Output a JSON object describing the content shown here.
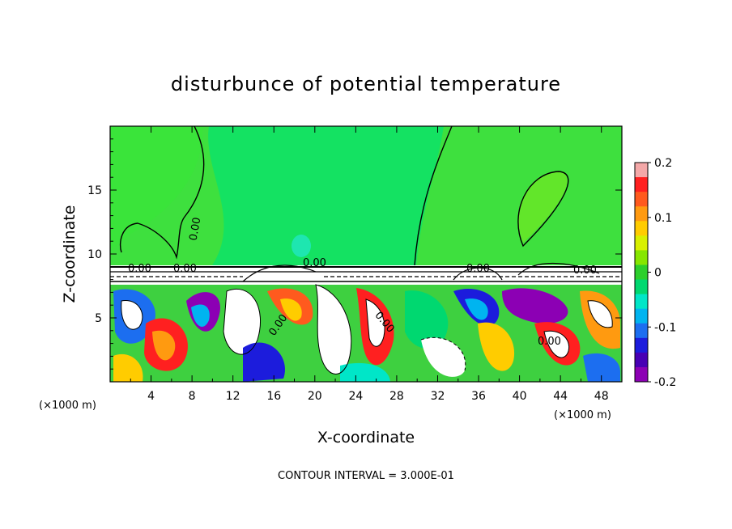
{
  "chart_data": {
    "type": "heatmap",
    "title": "disturbunce of potential temperature",
    "xlabel": "X-coordinate",
    "ylabel": "Z-coordinate",
    "x_unit": "(×1000 m)",
    "z_unit": "(×1000 m)",
    "xlim": [
      0,
      50
    ],
    "ylim": [
      0,
      20
    ],
    "x_ticks": [
      "4",
      "8",
      "12",
      "16",
      "20",
      "24",
      "28",
      "32",
      "36",
      "40",
      "44",
      "48"
    ],
    "y_ticks": [
      "5",
      "10",
      "15"
    ],
    "colorbar": {
      "range": [
        -0.2,
        0.2
      ],
      "ticks": [
        "0.2",
        "0.1",
        "0",
        "-0.1",
        "-0.2"
      ],
      "colors": [
        "#f4a8a8",
        "#ff2020",
        "#ff5a1e",
        "#ff9a10",
        "#ffcc00",
        "#d8f000",
        "#86e600",
        "#2ccf2c",
        "#00d870",
        "#00e6c8",
        "#00b4f0",
        "#1c6ef0",
        "#1c1cdc",
        "#4800b4",
        "#8c00b4"
      ]
    },
    "contour_labels": [
      "0.00",
      "0.00",
      "0.00",
      "0.00",
      "0.00",
      "0.00",
      "0.00",
      "0.00",
      "0.00"
    ],
    "footnote": "CONTOUR INTERVAL = 3.000E-01"
  }
}
